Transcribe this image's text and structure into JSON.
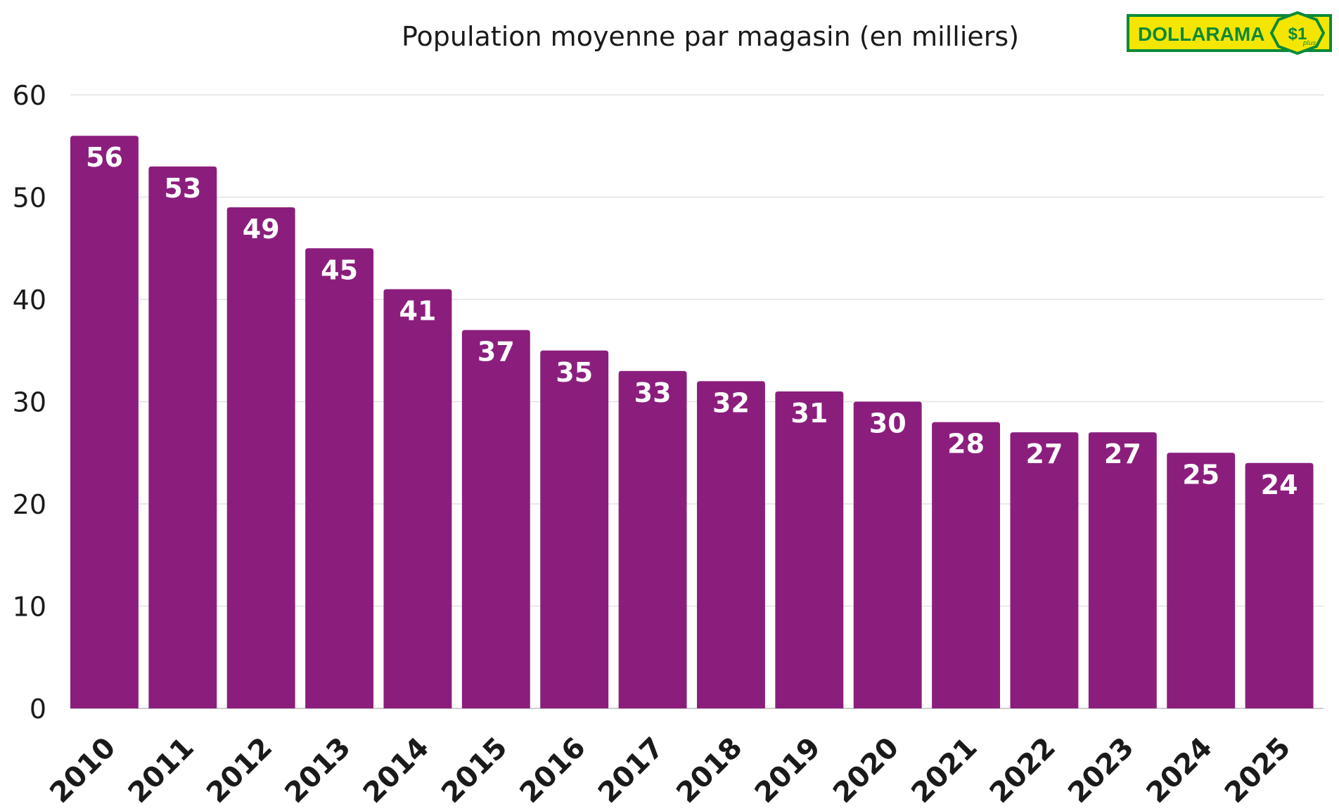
{
  "chart_data": {
    "type": "bar",
    "title": "Population moyenne par magasin (en milliers)",
    "categories": [
      "2010",
      "2011",
      "2012",
      "2013",
      "2014",
      "2015",
      "2016",
      "2017",
      "2018",
      "2019",
      "2020",
      "2021",
      "2022",
      "2023",
      "2024",
      "2025"
    ],
    "values": [
      56,
      53,
      49,
      45,
      41,
      37,
      35,
      33,
      32,
      31,
      30,
      28,
      27,
      27,
      25,
      24
    ],
    "data_labels": [
      "56",
      "53",
      "49",
      "45",
      "41",
      "37",
      "35",
      "33",
      "32",
      "31",
      "30",
      "28",
      "27",
      "27",
      "25",
      "24"
    ],
    "xlabel": "",
    "ylabel": "",
    "ylim": [
      0,
      60
    ],
    "yticks": [
      "0",
      "10",
      "20",
      "30",
      "40",
      "50",
      "60"
    ],
    "grid": true,
    "bar_color": "#8b1e7d"
  },
  "logo": {
    "text": "DOLLARAMA",
    "badge": "$1",
    "badge_small": "plus",
    "bg_color": "#f5e600",
    "text_color": "#0a8a3a"
  }
}
